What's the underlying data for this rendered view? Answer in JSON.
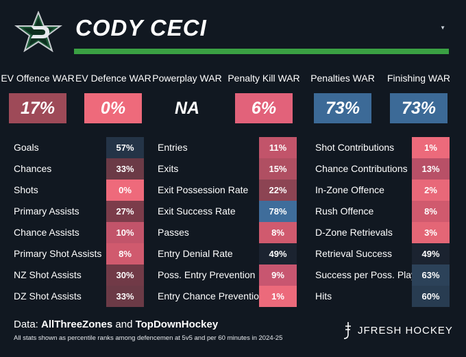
{
  "header": {
    "player_name": "CODY CECI"
  },
  "war": [
    {
      "label": "EV Offence WAR",
      "value": "17%",
      "color": "#9e4a58"
    },
    {
      "label": "EV Defence WAR",
      "value": "0%",
      "color": "#ee6a7b"
    },
    {
      "label": "Powerplay WAR",
      "value": "NA",
      "color": "#111821"
    },
    {
      "label": "Penalty Kill WAR",
      "value": "6%",
      "color": "#e2627a"
    },
    {
      "label": "Penalties WAR",
      "value": "73%",
      "color": "#3c6a97"
    },
    {
      "label": "Finishing WAR",
      "value": "73%",
      "color": "#3c6a97"
    }
  ],
  "columns": [
    {
      "stats": [
        {
          "label": "Goals",
          "value": "57%",
          "color": "#243447"
        },
        {
          "label": "Chances",
          "value": "33%",
          "color": "#6b3a46"
        },
        {
          "label": "Shots",
          "value": "0%",
          "color": "#ee6a7b"
        },
        {
          "label": "Primary Assists",
          "value": "27%",
          "color": "#7b3c4a"
        },
        {
          "label": "Chance Assists",
          "value": "10%",
          "color": "#c2546a"
        },
        {
          "label": "Primary Shot Assists",
          "value": "8%",
          "color": "#d05a6e"
        },
        {
          "label": "NZ Shot Assists",
          "value": "30%",
          "color": "#713a47"
        },
        {
          "label": "DZ Shot Assists",
          "value": "33%",
          "color": "#6b3a46"
        }
      ]
    },
    {
      "stats": [
        {
          "label": "Entries",
          "value": "11%",
          "color": "#c2546a"
        },
        {
          "label": "Exits",
          "value": "15%",
          "color": "#b04f62"
        },
        {
          "label": "Exit Possession Rate",
          "value": "22%",
          "color": "#8c4453"
        },
        {
          "label": "Exit Success Rate",
          "value": "78%",
          "color": "#3f6d9b"
        },
        {
          "label": "Passes",
          "value": "8%",
          "color": "#d05a6e"
        },
        {
          "label": "Entry Denial Rate",
          "value": "49%",
          "color": "#1b2330"
        },
        {
          "label": "Poss. Entry Prevention",
          "value": "9%",
          "color": "#c85670"
        },
        {
          "label": "Entry Chance Prevention",
          "value": "1%",
          "color": "#ec6a7b"
        }
      ]
    },
    {
      "stats": [
        {
          "label": "Shot Contributions",
          "value": "1%",
          "color": "#ec6a7b"
        },
        {
          "label": "Chance Contributions",
          "value": "13%",
          "color": "#b85067"
        },
        {
          "label": "In-Zone Offence",
          "value": "2%",
          "color": "#e86879"
        },
        {
          "label": "Rush Offence",
          "value": "8%",
          "color": "#d05a6e"
        },
        {
          "label": "D-Zone Retrievals",
          "value": "3%",
          "color": "#e46676"
        },
        {
          "label": "Retrieval Success",
          "value": "49%",
          "color": "#1b2330"
        },
        {
          "label": "Success per Poss. Play",
          "value": "63%",
          "color": "#2c4259"
        },
        {
          "label": "Hits",
          "value": "60%",
          "color": "#283c51"
        }
      ]
    }
  ],
  "footer": {
    "data_prefix": "Data: ",
    "source_1": "AllThreeZones",
    "and_text": " and ",
    "source_2": "TopDownHockey",
    "note": "All stats shown as percentile ranks among defencemen at 5v5 and per 60 minutes in 2024-25",
    "brand": "JFRESH HOCKEY"
  },
  "icons": {
    "team_logo": "dallas-stars-logo",
    "dropdown": "caret-down-icon",
    "brand_mark": "jfresh-mark-icon"
  }
}
